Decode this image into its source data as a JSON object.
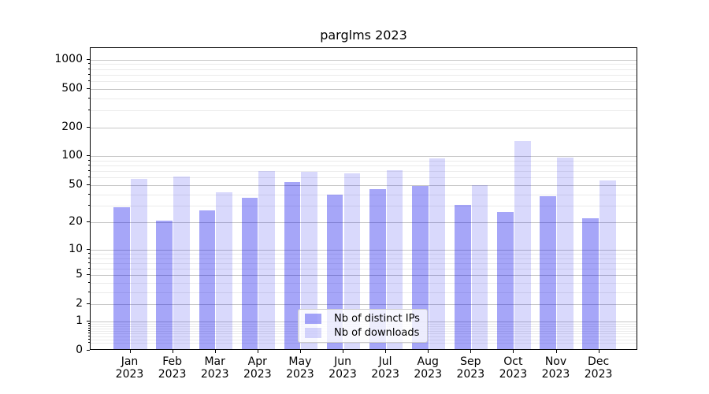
{
  "title": "parglms 2023",
  "chart_data": {
    "type": "bar",
    "title": "parglms 2023",
    "categories": [
      "Jan 2023",
      "Feb 2023",
      "Mar 2023",
      "Apr 2023",
      "May 2023",
      "Jun 2023",
      "Jul 2023",
      "Aug 2023",
      "Sep 2023",
      "Oct 2023",
      "Nov 2023",
      "Dec 2023"
    ],
    "series": [
      {
        "name": "Nb of distinct IPs",
        "color": "rgba(0,0,235,0.35)",
        "values": [
          29,
          21,
          27,
          37,
          54,
          40,
          45,
          49,
          31,
          26,
          38,
          22
        ]
      },
      {
        "name": "Nb of downloads",
        "color": "rgba(0,0,235,0.15)",
        "values": [
          58,
          62,
          42,
          70,
          69,
          66,
          72,
          95,
          50,
          145,
          96,
          56
        ]
      }
    ],
    "xlabel": "",
    "ylabel": "",
    "yticks": [
      0,
      1,
      2,
      5,
      10,
      20,
      50,
      100,
      200,
      500,
      1000
    ],
    "scale": "log1p",
    "ylim": [
      0,
      1316
    ],
    "grid": true,
    "legend_position": "lower center"
  },
  "colors": {
    "bar_distinct_ips": "rgba(0,0,235,0.35)",
    "bar_downloads": "rgba(0,0,235,0.15)",
    "grid_major": "#c6c6c6",
    "grid_minor": "#ebebeb",
    "spine": "#000000",
    "background": "#ffffff"
  }
}
